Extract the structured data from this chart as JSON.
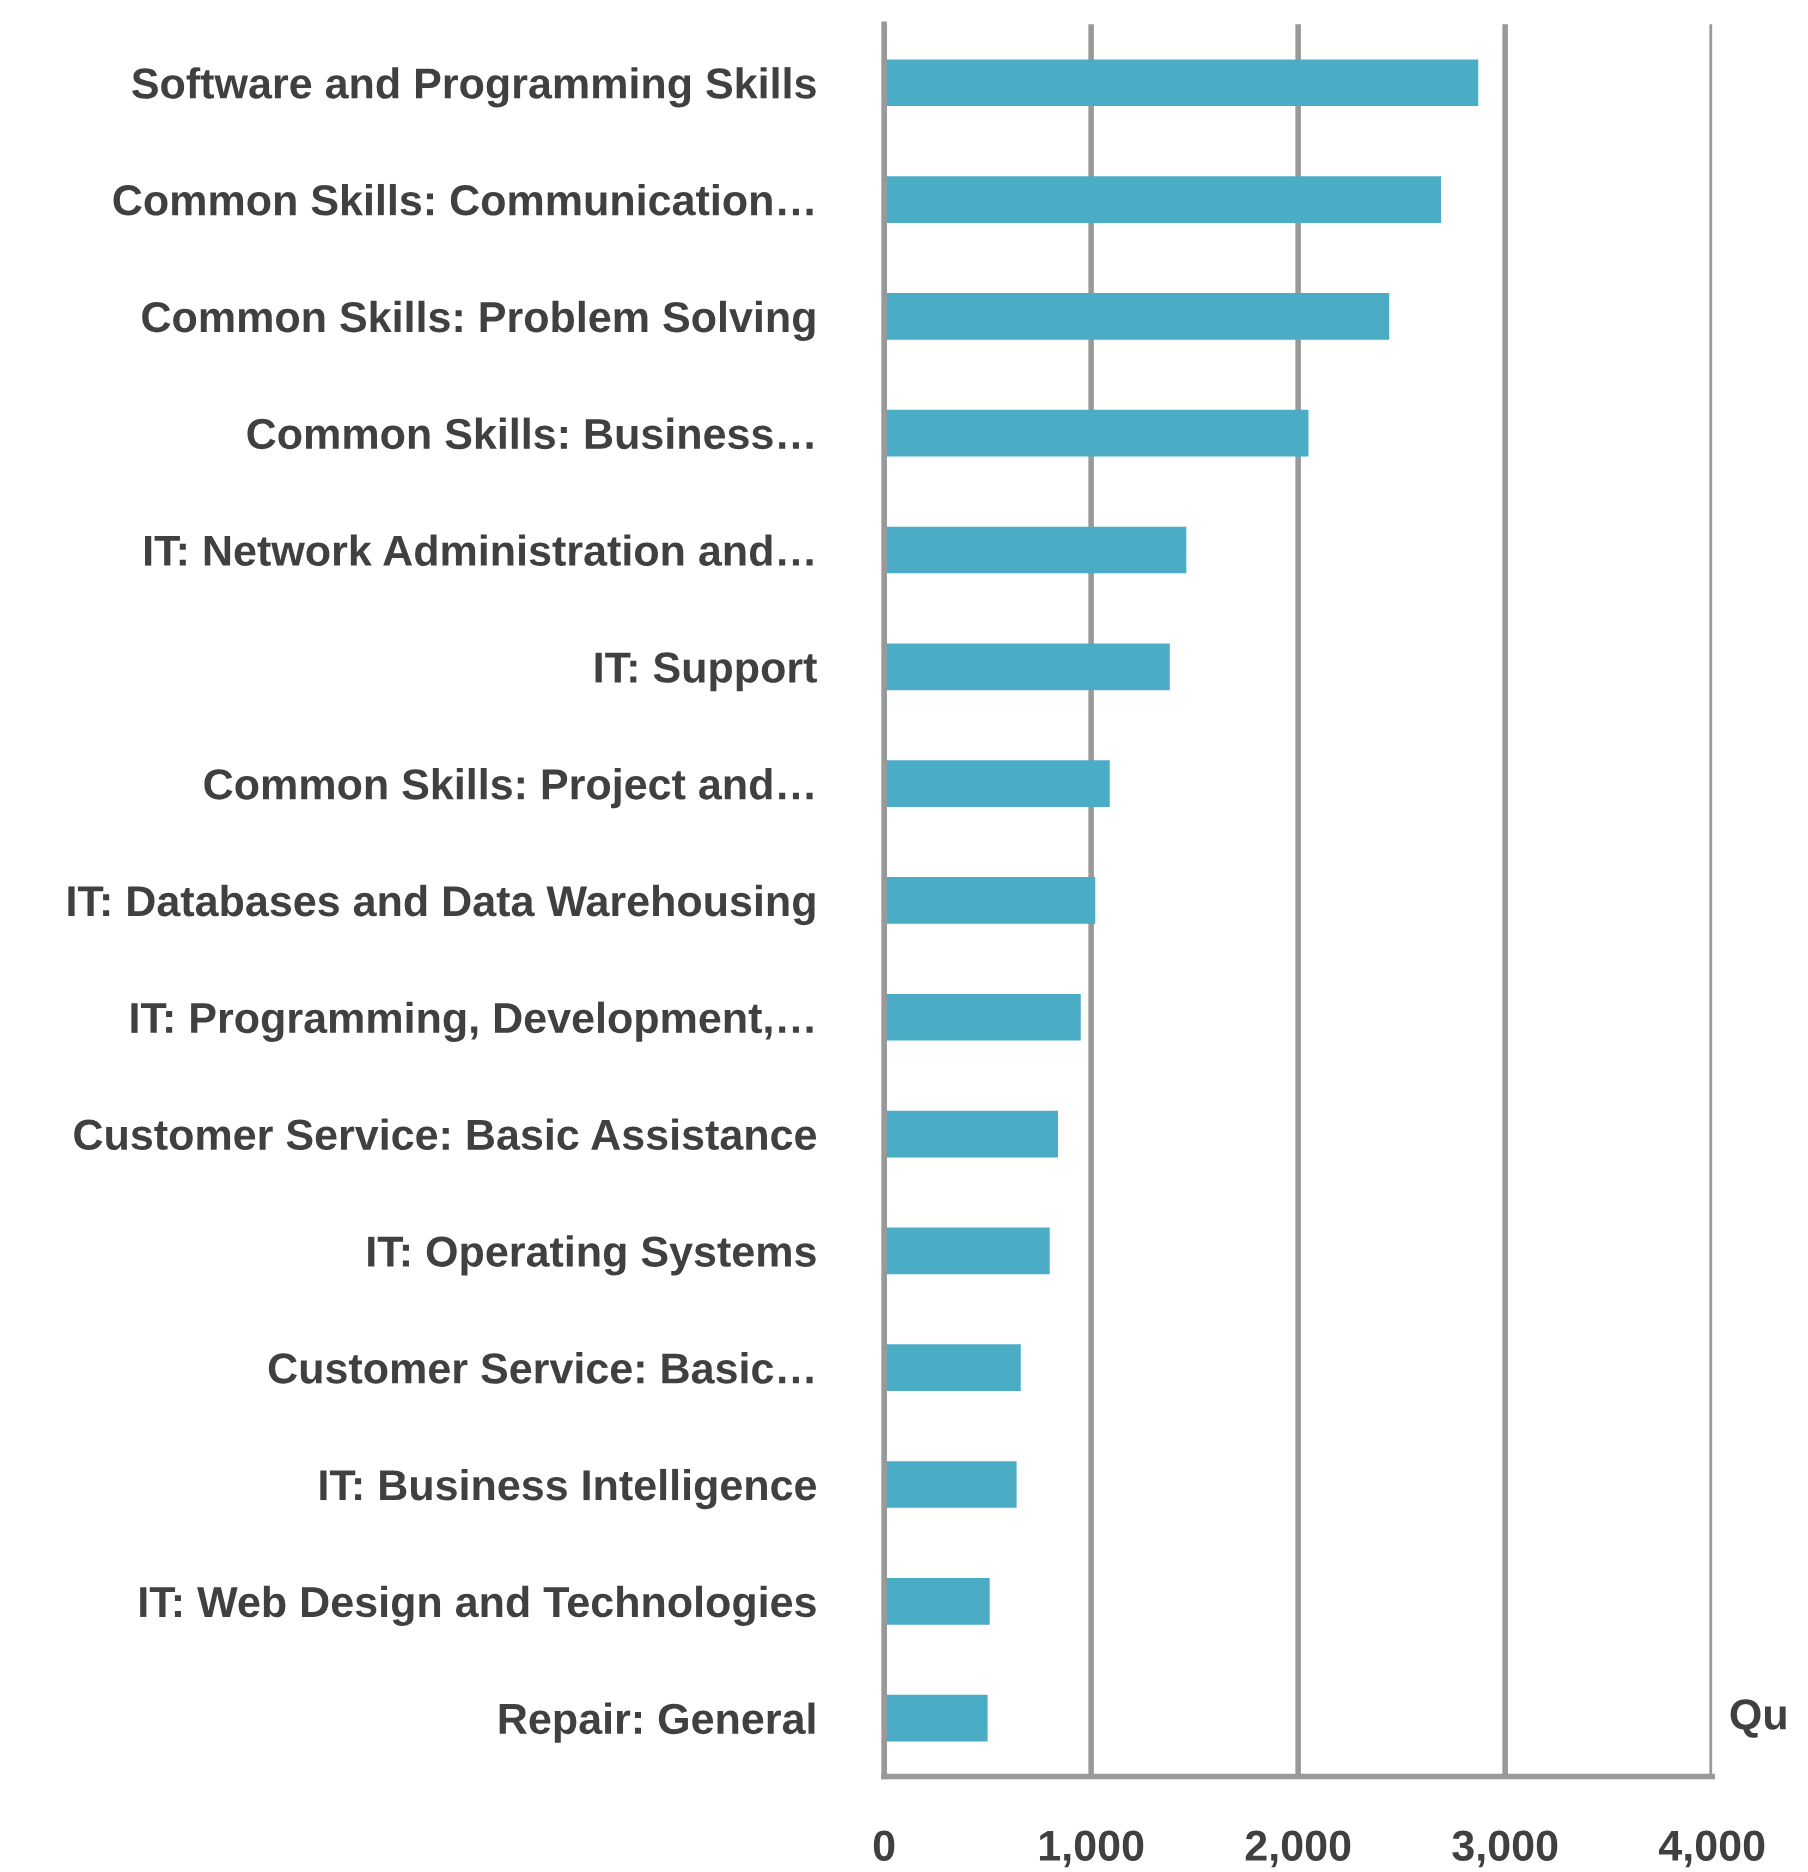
{
  "chart_data": {
    "type": "bar",
    "orientation": "horizontal",
    "categories": [
      "Software and Programming Skills",
      "Common Skills: Communication…",
      "Common Skills: Problem Solving",
      "Common Skills: Business…",
      "IT: Network Administration and…",
      "IT: Support",
      "Common Skills: Project and…",
      "IT: Databases and Data Warehousing",
      "IT: Programming, Development,…",
      "Customer Service: Basic Assistance",
      "IT: Operating Systems",
      "Customer Service: Basic…",
      "IT: Business Intelligence",
      "IT: Web Design and Technologies",
      "Repair: General"
    ],
    "values": [
      2870,
      2690,
      2440,
      2050,
      1460,
      1380,
      1090,
      1020,
      950,
      840,
      800,
      660,
      640,
      510,
      500
    ],
    "color": "#4bacc6",
    "xlim": [
      0,
      4000
    ],
    "xticks": [
      {
        "value": 0,
        "label": "0"
      },
      {
        "value": 1000,
        "label": "1,000"
      },
      {
        "value": 2000,
        "label": "2,000"
      },
      {
        "value": 3000,
        "label": "3,000"
      },
      {
        "value": 4000,
        "label": "4,000"
      }
    ],
    "grid": "x",
    "annotations": [
      "Qu"
    ]
  }
}
